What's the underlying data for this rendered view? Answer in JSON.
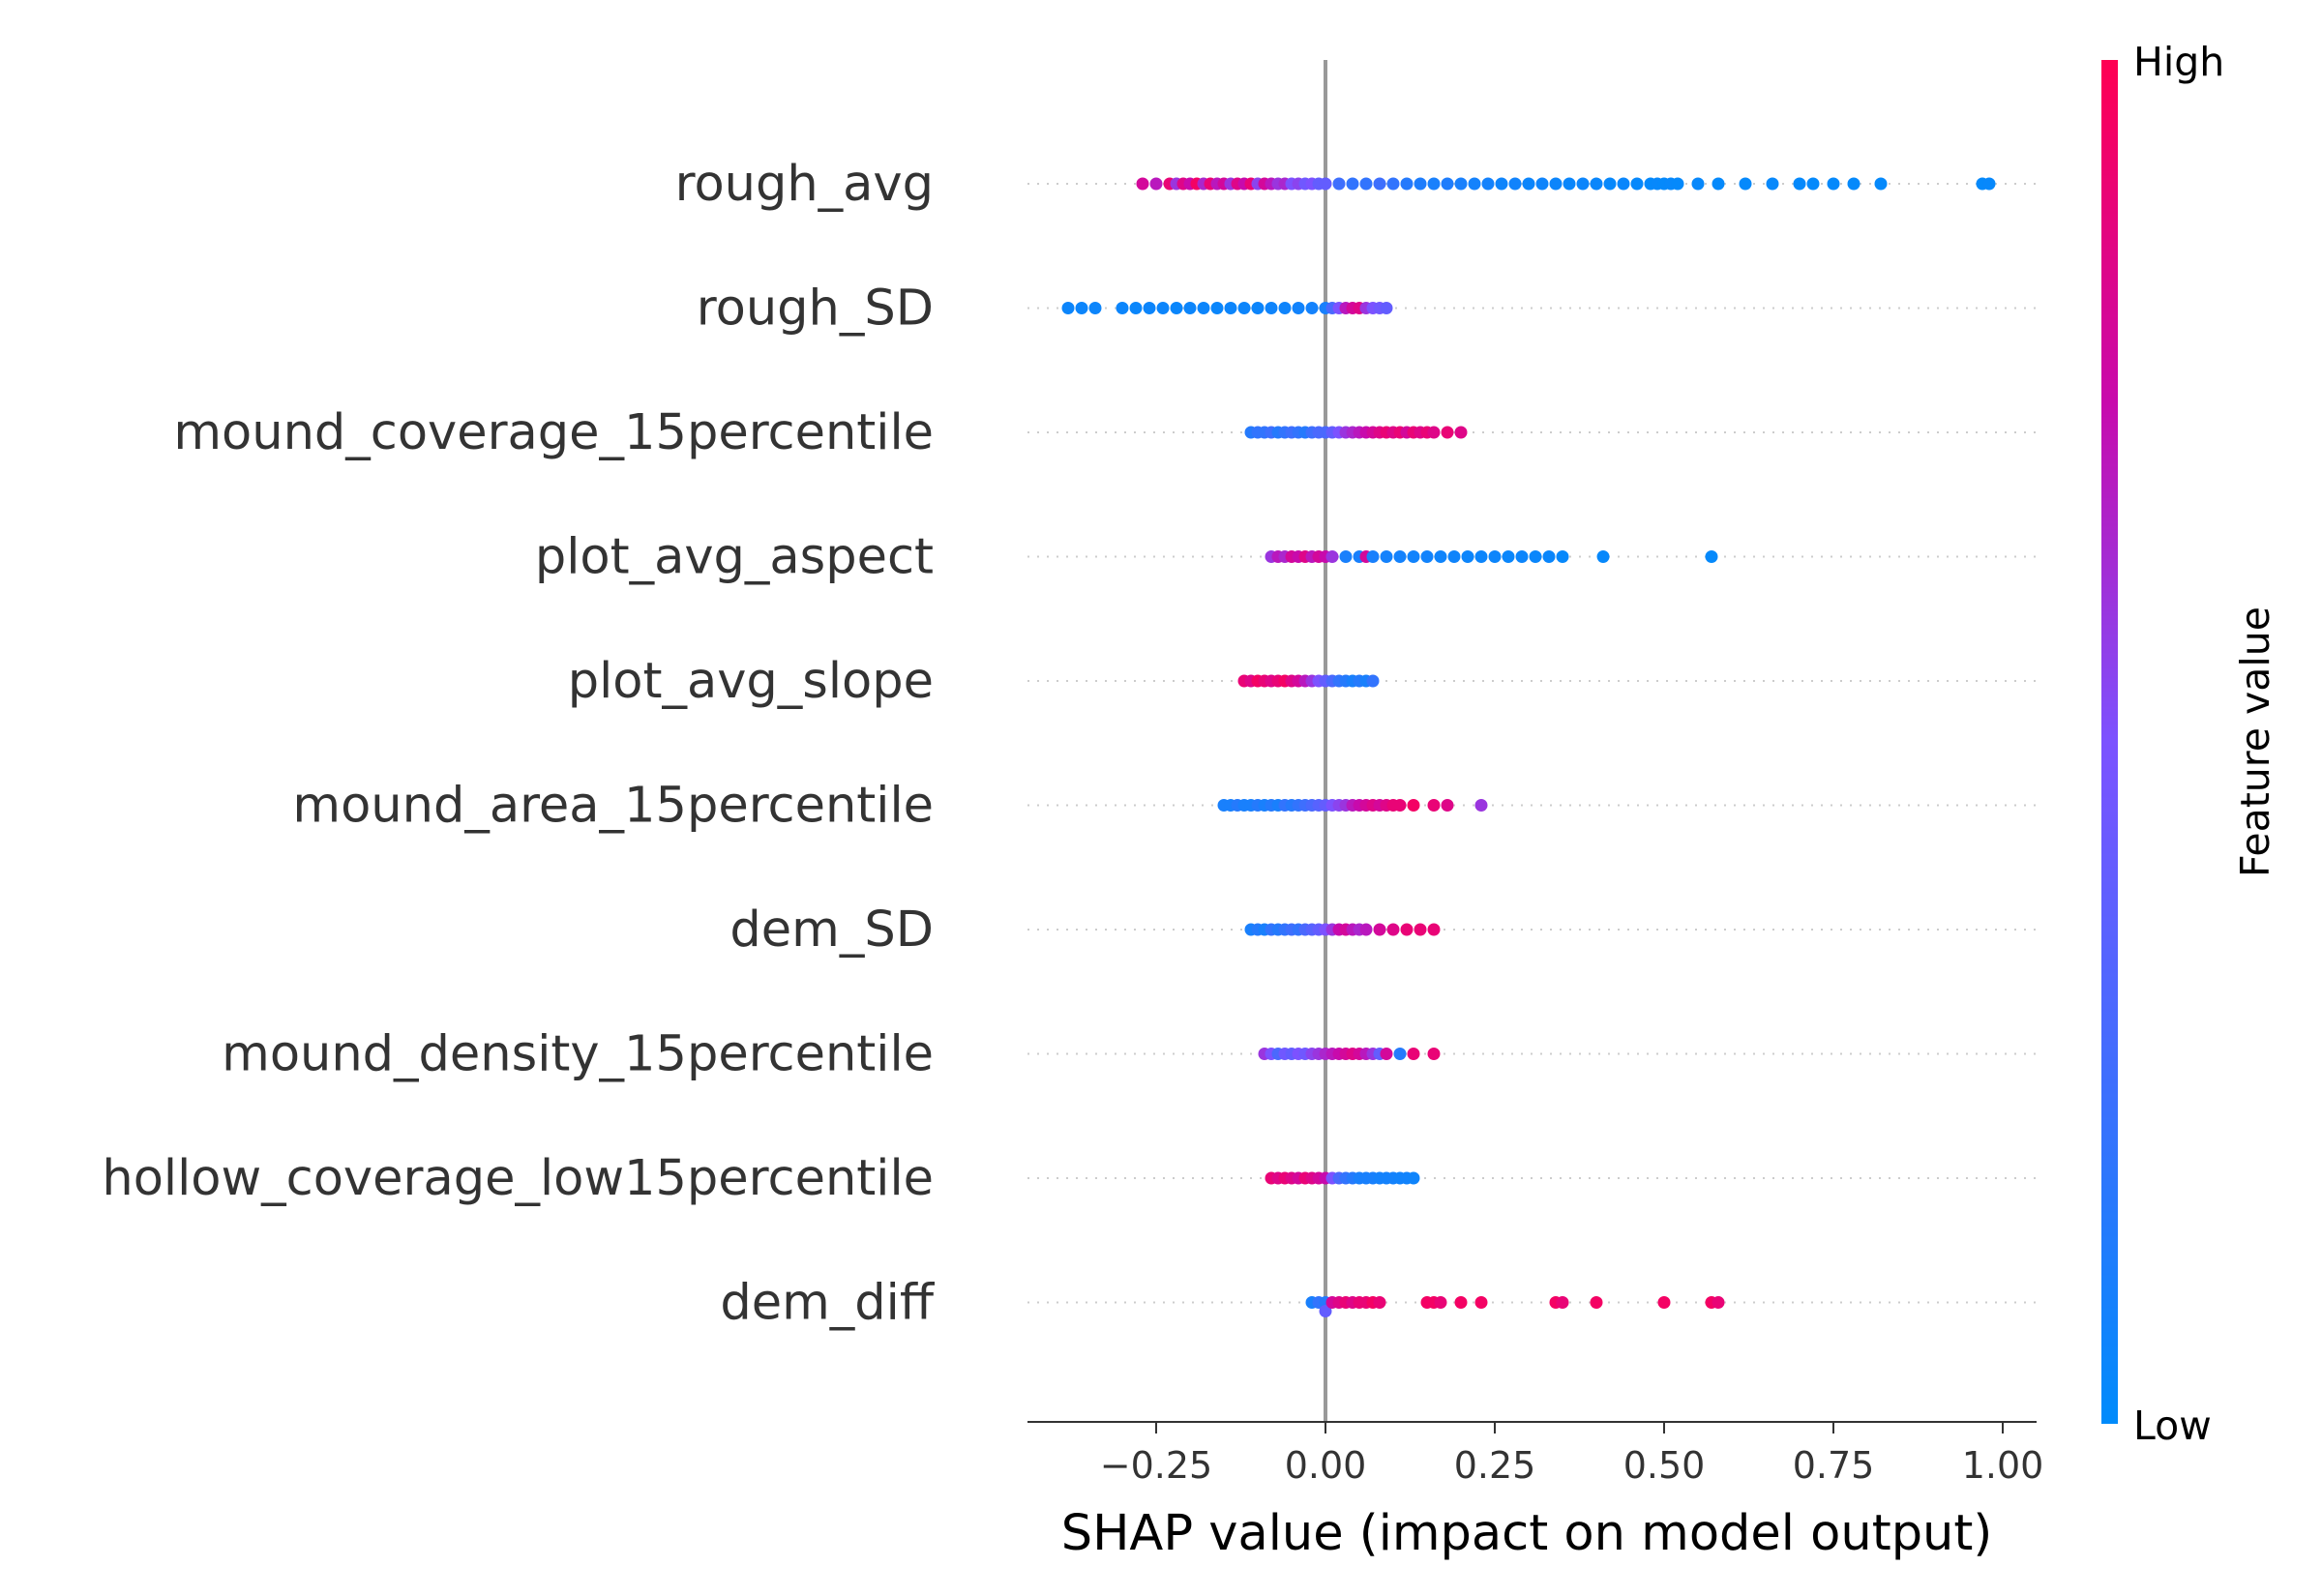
{
  "chart_data": {
    "type": "scatter",
    "subtype": "shap-beeswarm",
    "title": "",
    "xlabel": "SHAP value (impact on model output)",
    "xlim": [
      -0.44,
      1.05
    ],
    "xticks": [
      -0.25,
      0.0,
      0.25,
      0.5,
      0.75,
      1.0
    ],
    "xtick_labels": [
      "−0.25",
      "0.00",
      "0.25",
      "0.50",
      "0.75",
      "1.00"
    ],
    "zero_line": true,
    "row_gridlines": "dotted",
    "colorbar": {
      "title": "Feature value",
      "high_label": "High",
      "low_label": "Low",
      "high_color": "#ff0052",
      "low_color": "#008bfb",
      "position": "right"
    },
    "features": [
      {
        "name": "rough_avg",
        "points": [
          [
            -0.27,
            0.8
          ],
          [
            -0.25,
            0.7
          ],
          [
            -0.23,
            0.9
          ],
          [
            -0.22,
            0.6
          ],
          [
            -0.21,
            0.85
          ],
          [
            -0.2,
            0.75
          ],
          [
            -0.19,
            0.95
          ],
          [
            -0.18,
            0.65
          ],
          [
            -0.17,
            0.9
          ],
          [
            -0.16,
            0.7
          ],
          [
            -0.15,
            0.8
          ],
          [
            -0.14,
            0.6
          ],
          [
            -0.13,
            0.85
          ],
          [
            -0.12,
            0.75
          ],
          [
            -0.11,
            0.9
          ],
          [
            -0.1,
            0.55
          ],
          [
            -0.09,
            0.8
          ],
          [
            -0.08,
            0.7
          ],
          [
            -0.07,
            0.6
          ],
          [
            -0.06,
            0.65
          ],
          [
            -0.05,
            0.5
          ],
          [
            -0.04,
            0.55
          ],
          [
            -0.03,
            0.45
          ],
          [
            -0.02,
            0.5
          ],
          [
            -0.01,
            0.4
          ],
          [
            0.0,
            0.4
          ],
          [
            0.02,
            0.25
          ],
          [
            0.04,
            0.2
          ],
          [
            0.06,
            0.2
          ],
          [
            0.08,
            0.25
          ],
          [
            0.1,
            0.2
          ],
          [
            0.12,
            0.15
          ],
          [
            0.14,
            0.12
          ],
          [
            0.16,
            0.1
          ],
          [
            0.18,
            0.12
          ],
          [
            0.2,
            0.1
          ],
          [
            0.22,
            0.08
          ],
          [
            0.24,
            0.08
          ],
          [
            0.26,
            0.06
          ],
          [
            0.28,
            0.07
          ],
          [
            0.3,
            0.05
          ],
          [
            0.32,
            0.06
          ],
          [
            0.34,
            0.05
          ],
          [
            0.36,
            0.04
          ],
          [
            0.38,
            0.05
          ],
          [
            0.4,
            0.04
          ],
          [
            0.42,
            0.03
          ],
          [
            0.44,
            0.04
          ],
          [
            0.46,
            0.03
          ],
          [
            0.48,
            0.02
          ],
          [
            0.49,
            0.03
          ],
          [
            0.5,
            0.02
          ],
          [
            0.51,
            0.03
          ],
          [
            0.52,
            0.02
          ],
          [
            0.55,
            0.03
          ],
          [
            0.58,
            0.02
          ],
          [
            0.62,
            0.02
          ],
          [
            0.66,
            0.03
          ],
          [
            0.7,
            0.02
          ],
          [
            0.72,
            0.02
          ],
          [
            0.75,
            0.02
          ],
          [
            0.78,
            0.02
          ],
          [
            0.82,
            0.02
          ],
          [
            0.97,
            0.02
          ],
          [
            0.98,
            0.03
          ]
        ]
      },
      {
        "name": "rough_SD",
        "points": [
          [
            -0.38,
            0.05
          ],
          [
            -0.36,
            0.05
          ],
          [
            -0.34,
            0.05
          ],
          [
            -0.3,
            0.05
          ],
          [
            -0.28,
            0.04
          ],
          [
            -0.26,
            0.05
          ],
          [
            -0.24,
            0.05
          ],
          [
            -0.22,
            0.04
          ],
          [
            -0.2,
            0.05
          ],
          [
            -0.18,
            0.05
          ],
          [
            -0.16,
            0.04
          ],
          [
            -0.14,
            0.05
          ],
          [
            -0.12,
            0.05
          ],
          [
            -0.1,
            0.05
          ],
          [
            -0.08,
            0.06
          ],
          [
            -0.06,
            0.06
          ],
          [
            -0.04,
            0.07
          ],
          [
            -0.02,
            0.08
          ],
          [
            0.0,
            0.1
          ],
          [
            0.01,
            0.3
          ],
          [
            0.02,
            0.5
          ],
          [
            0.03,
            0.7
          ],
          [
            0.04,
            0.8
          ],
          [
            0.05,
            0.85
          ],
          [
            0.06,
            0.6
          ],
          [
            0.07,
            0.5
          ],
          [
            0.08,
            0.45
          ],
          [
            0.09,
            0.4
          ]
        ]
      },
      {
        "name": "mound_coverage_15percentile",
        "points": [
          [
            -0.11,
            0.15
          ],
          [
            -0.1,
            0.2
          ],
          [
            -0.09,
            0.2
          ],
          [
            -0.08,
            0.25
          ],
          [
            -0.07,
            0.15
          ],
          [
            -0.06,
            0.2
          ],
          [
            -0.05,
            0.25
          ],
          [
            -0.04,
            0.2
          ],
          [
            -0.03,
            0.15
          ],
          [
            -0.02,
            0.25
          ],
          [
            -0.01,
            0.3
          ],
          [
            0.0,
            0.3
          ],
          [
            0.01,
            0.4
          ],
          [
            0.02,
            0.5
          ],
          [
            0.03,
            0.6
          ],
          [
            0.04,
            0.65
          ],
          [
            0.05,
            0.7
          ],
          [
            0.06,
            0.75
          ],
          [
            0.07,
            0.8
          ],
          [
            0.08,
            0.85
          ],
          [
            0.09,
            0.9
          ],
          [
            0.1,
            0.85
          ],
          [
            0.11,
            0.9
          ],
          [
            0.12,
            0.8
          ],
          [
            0.13,
            0.9
          ],
          [
            0.14,
            0.85
          ],
          [
            0.15,
            0.9
          ],
          [
            0.16,
            0.85
          ],
          [
            0.18,
            0.9
          ],
          [
            0.2,
            0.85
          ]
        ]
      },
      {
        "name": "plot_avg_aspect",
        "points": [
          [
            -0.08,
            0.6
          ],
          [
            -0.07,
            0.7
          ],
          [
            -0.06,
            0.65
          ],
          [
            -0.05,
            0.8
          ],
          [
            -0.04,
            0.75
          ],
          [
            -0.03,
            0.85
          ],
          [
            -0.02,
            0.7
          ],
          [
            -0.01,
            0.8
          ],
          [
            0.0,
            0.75
          ],
          [
            0.01,
            0.6
          ],
          [
            0.03,
            0.1
          ],
          [
            0.05,
            0.1
          ],
          [
            0.06,
            0.8
          ],
          [
            0.07,
            0.1
          ],
          [
            0.09,
            0.08
          ],
          [
            0.11,
            0.08
          ],
          [
            0.13,
            0.07
          ],
          [
            0.15,
            0.07
          ],
          [
            0.17,
            0.06
          ],
          [
            0.19,
            0.06
          ],
          [
            0.21,
            0.05
          ],
          [
            0.23,
            0.05
          ],
          [
            0.25,
            0.05
          ],
          [
            0.27,
            0.04
          ],
          [
            0.29,
            0.05
          ],
          [
            0.31,
            0.04
          ],
          [
            0.33,
            0.04
          ],
          [
            0.35,
            0.03
          ],
          [
            0.41,
            0.03
          ],
          [
            0.57,
            0.02
          ]
        ]
      },
      {
        "name": "plot_avg_slope",
        "points": [
          [
            -0.12,
            0.9
          ],
          [
            -0.11,
            0.85
          ],
          [
            -0.1,
            0.95
          ],
          [
            -0.09,
            0.9
          ],
          [
            -0.08,
            0.85
          ],
          [
            -0.07,
            0.9
          ],
          [
            -0.06,
            0.95
          ],
          [
            -0.05,
            0.85
          ],
          [
            -0.04,
            0.8
          ],
          [
            -0.03,
            0.7
          ],
          [
            -0.02,
            0.6
          ],
          [
            -0.01,
            0.5
          ],
          [
            0.0,
            0.4
          ],
          [
            0.01,
            0.3
          ],
          [
            0.02,
            0.2
          ],
          [
            0.03,
            0.15
          ],
          [
            0.04,
            0.1
          ],
          [
            0.05,
            0.15
          ],
          [
            0.06,
            0.1
          ],
          [
            0.07,
            0.2
          ]
        ]
      },
      {
        "name": "mound_area_15percentile",
        "points": [
          [
            -0.15,
            0.1
          ],
          [
            -0.14,
            0.1
          ],
          [
            -0.13,
            0.15
          ],
          [
            -0.12,
            0.1
          ],
          [
            -0.11,
            0.1
          ],
          [
            -0.1,
            0.15
          ],
          [
            -0.09,
            0.1
          ],
          [
            -0.08,
            0.15
          ],
          [
            -0.07,
            0.1
          ],
          [
            -0.06,
            0.2
          ],
          [
            -0.05,
            0.15
          ],
          [
            -0.04,
            0.2
          ],
          [
            -0.03,
            0.25
          ],
          [
            -0.02,
            0.3
          ],
          [
            -0.01,
            0.35
          ],
          [
            0.0,
            0.4
          ],
          [
            0.01,
            0.5
          ],
          [
            0.02,
            0.55
          ],
          [
            0.03,
            0.6
          ],
          [
            0.04,
            0.7
          ],
          [
            0.05,
            0.75
          ],
          [
            0.06,
            0.8
          ],
          [
            0.07,
            0.85
          ],
          [
            0.08,
            0.8
          ],
          [
            0.09,
            0.85
          ],
          [
            0.1,
            0.9
          ],
          [
            0.11,
            0.9
          ],
          [
            0.13,
            0.95
          ],
          [
            0.16,
            0.9
          ],
          [
            0.18,
            0.85
          ],
          [
            0.23,
            0.6
          ]
        ]
      },
      {
        "name": "dem_SD",
        "points": [
          [
            -0.11,
            0.1
          ],
          [
            -0.1,
            0.15
          ],
          [
            -0.09,
            0.1
          ],
          [
            -0.08,
            0.2
          ],
          [
            -0.07,
            0.15
          ],
          [
            -0.06,
            0.2
          ],
          [
            -0.05,
            0.25
          ],
          [
            -0.04,
            0.2
          ],
          [
            -0.03,
            0.3
          ],
          [
            -0.02,
            0.35
          ],
          [
            -0.01,
            0.4
          ],
          [
            0.0,
            0.5
          ],
          [
            0.01,
            0.6
          ],
          [
            0.02,
            0.75
          ],
          [
            0.03,
            0.8
          ],
          [
            0.04,
            0.7
          ],
          [
            0.05,
            0.65
          ],
          [
            0.06,
            0.7
          ],
          [
            0.08,
            0.8
          ],
          [
            0.1,
            0.85
          ],
          [
            0.12,
            0.9
          ],
          [
            0.14,
            0.9
          ],
          [
            0.16,
            0.9
          ]
        ]
      },
      {
        "name": "mound_density_15percentile",
        "points": [
          [
            -0.09,
            0.6
          ],
          [
            -0.08,
            0.5
          ],
          [
            -0.07,
            0.3
          ],
          [
            -0.06,
            0.45
          ],
          [
            -0.05,
            0.4
          ],
          [
            -0.04,
            0.5
          ],
          [
            -0.03,
            0.45
          ],
          [
            -0.02,
            0.55
          ],
          [
            -0.01,
            0.6
          ],
          [
            0.0,
            0.65
          ],
          [
            0.01,
            0.7
          ],
          [
            0.02,
            0.75
          ],
          [
            0.03,
            0.8
          ],
          [
            0.04,
            0.85
          ],
          [
            0.05,
            0.8
          ],
          [
            0.06,
            0.7
          ],
          [
            0.07,
            0.6
          ],
          [
            0.08,
            0.4
          ],
          [
            0.09,
            0.8
          ],
          [
            0.11,
            0.15
          ],
          [
            0.13,
            0.9
          ],
          [
            0.16,
            0.9
          ]
        ]
      },
      {
        "name": "hollow_coverage_low15percentile",
        "points": [
          [
            -0.08,
            0.9
          ],
          [
            -0.07,
            0.85
          ],
          [
            -0.06,
            0.9
          ],
          [
            -0.05,
            0.85
          ],
          [
            -0.04,
            0.8
          ],
          [
            -0.03,
            0.9
          ],
          [
            -0.02,
            0.85
          ],
          [
            -0.01,
            0.8
          ],
          [
            0.0,
            0.75
          ],
          [
            0.01,
            0.5
          ],
          [
            0.02,
            0.3
          ],
          [
            0.03,
            0.2
          ],
          [
            0.04,
            0.15
          ],
          [
            0.05,
            0.1
          ],
          [
            0.06,
            0.1
          ],
          [
            0.07,
            0.1
          ],
          [
            0.08,
            0.08
          ],
          [
            0.09,
            0.08
          ],
          [
            0.1,
            0.08
          ],
          [
            0.11,
            0.07
          ],
          [
            0.12,
            0.07
          ],
          [
            0.13,
            0.06
          ]
        ]
      },
      {
        "name": "dem_diff",
        "points": [
          [
            -0.02,
            0.1
          ],
          [
            -0.01,
            0.2
          ],
          [
            0.0,
            0.15
          ],
          [
            0.0,
            0.4
          ],
          [
            0.01,
            0.8
          ],
          [
            0.02,
            0.85
          ],
          [
            0.03,
            0.9
          ],
          [
            0.04,
            0.85
          ],
          [
            0.05,
            0.9
          ],
          [
            0.06,
            0.9
          ],
          [
            0.07,
            0.95
          ],
          [
            0.08,
            0.9
          ],
          [
            0.15,
            0.95
          ],
          [
            0.16,
            0.95
          ],
          [
            0.17,
            0.9
          ],
          [
            0.2,
            0.95
          ],
          [
            0.23,
            0.95
          ],
          [
            0.34,
            0.95
          ],
          [
            0.35,
            0.9
          ],
          [
            0.4,
            0.95
          ],
          [
            0.5,
            0.95
          ],
          [
            0.57,
            0.95
          ],
          [
            0.58,
            0.9
          ]
        ]
      }
    ]
  }
}
